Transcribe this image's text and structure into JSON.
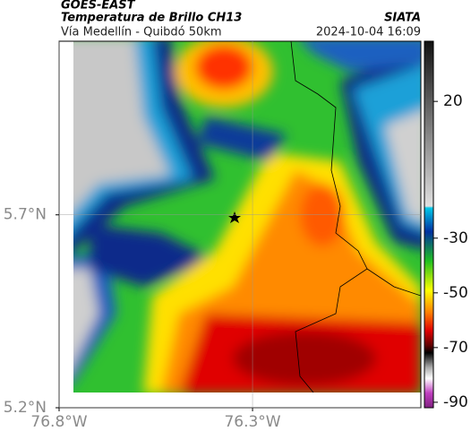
{
  "header": {
    "source": "GOES-EAST",
    "product": "Temperatura de Brillo CH13",
    "agency": "SIATA",
    "route": "Vía Medellín - Quibdó 50km",
    "timestamp": "2024-10-04 16:09"
  },
  "map": {
    "xlim": [
      -76.8,
      -75.865
    ],
    "ylim": [
      5.2,
      6.15
    ],
    "xticks": [
      {
        "value": -76.8,
        "label": "76.8°W"
      },
      {
        "value": -76.3,
        "label": "76.3°W"
      }
    ],
    "yticks": [
      {
        "value": 5.2,
        "label": "5.2°N"
      },
      {
        "value": 5.7,
        "label": "5.7°N"
      }
    ],
    "grid": true
  },
  "colorbar": {
    "lim": [
      -92,
      42
    ],
    "ticks": [
      20,
      -30,
      -50,
      -70,
      -90
    ]
  }
}
